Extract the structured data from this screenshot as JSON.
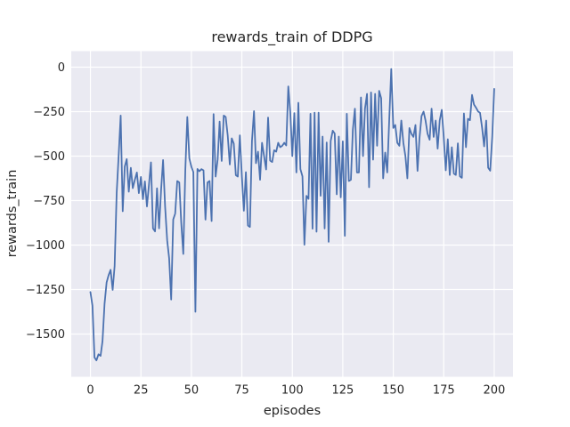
{
  "chart_data": {
    "type": "line",
    "title": "rewards_train of DDPG",
    "xlabel": "episodes",
    "ylabel": "rewards_train",
    "x_start": 0,
    "x_step": 1,
    "xticks": [
      0,
      25,
      50,
      75,
      100,
      125,
      150,
      175,
      200
    ],
    "yticks": [
      0,
      -250,
      -500,
      -750,
      -1000,
      -1250,
      -1500
    ],
    "xlim": [
      -9.5,
      209.3
    ],
    "ylim": [
      -1740,
      90
    ],
    "grid": true,
    "legend": null,
    "style": {
      "line_color": "#4c72b0",
      "plot_bg": "#eaeaf2",
      "grid_color": "#ffffff",
      "fig_bg": "#ffffff",
      "text_color": "#262626"
    },
    "series": [
      {
        "name": "rewards_train",
        "values": [
          -1264,
          -1340,
          -1631,
          -1648,
          -1614,
          -1623,
          -1540,
          -1330,
          -1210,
          -1170,
          -1139,
          -1252,
          -1118,
          -708,
          -490,
          -272,
          -810,
          -558,
          -517,
          -700,
          -566,
          -680,
          -633,
          -592,
          -708,
          -617,
          -742,
          -642,
          -783,
          -658,
          -535,
          -906,
          -923,
          -681,
          -906,
          -689,
          -522,
          -785,
          -973,
          -1073,
          -1306,
          -856,
          -823,
          -640,
          -648,
          -875,
          -1050,
          -575,
          -280,
          -512,
          -560,
          -590,
          -1375,
          -572,
          -585,
          -573,
          -580,
          -857,
          -648,
          -640,
          -865,
          -264,
          -615,
          -518,
          -306,
          -527,
          -272,
          -280,
          -385,
          -547,
          -400,
          -430,
          -607,
          -615,
          -383,
          -615,
          -807,
          -590,
          -890,
          -898,
          -415,
          -247,
          -540,
          -475,
          -633,
          -425,
          -500,
          -575,
          -283,
          -525,
          -533,
          -467,
          -475,
          -425,
          -450,
          -442,
          -425,
          -440,
          -108,
          -258,
          -500,
          -258,
          -592,
          -200,
          -573,
          -614,
          -998,
          -723,
          -740,
          -262,
          -908,
          -256,
          -925,
          -256,
          -723,
          -390,
          -907,
          -423,
          -982,
          -415,
          -357,
          -373,
          -715,
          -390,
          -732,
          -417,
          -948,
          -262,
          -640,
          -633,
          -350,
          -233,
          -592,
          -592,
          -170,
          -500,
          -233,
          -150,
          -675,
          -142,
          -520,
          -150,
          -442,
          -133,
          -175,
          -625,
          -480,
          -592,
          -300,
          -10,
          -342,
          -325,
          -425,
          -442,
          -300,
          -425,
          -500,
          -625,
          -342,
          -375,
          -392,
          -325,
          -583,
          -400,
          -275,
          -250,
          -300,
          -375,
          -408,
          -233,
          -392,
          -300,
          -458,
          -300,
          -240,
          -390,
          -580,
          -405,
          -606,
          -450,
          -598,
          -606,
          -428,
          -614,
          -622,
          -260,
          -450,
          -290,
          -298,
          -156,
          -210,
          -228,
          -249,
          -257,
          -340,
          -445,
          -300,
          -565,
          -582,
          -390,
          -122
        ]
      }
    ]
  }
}
